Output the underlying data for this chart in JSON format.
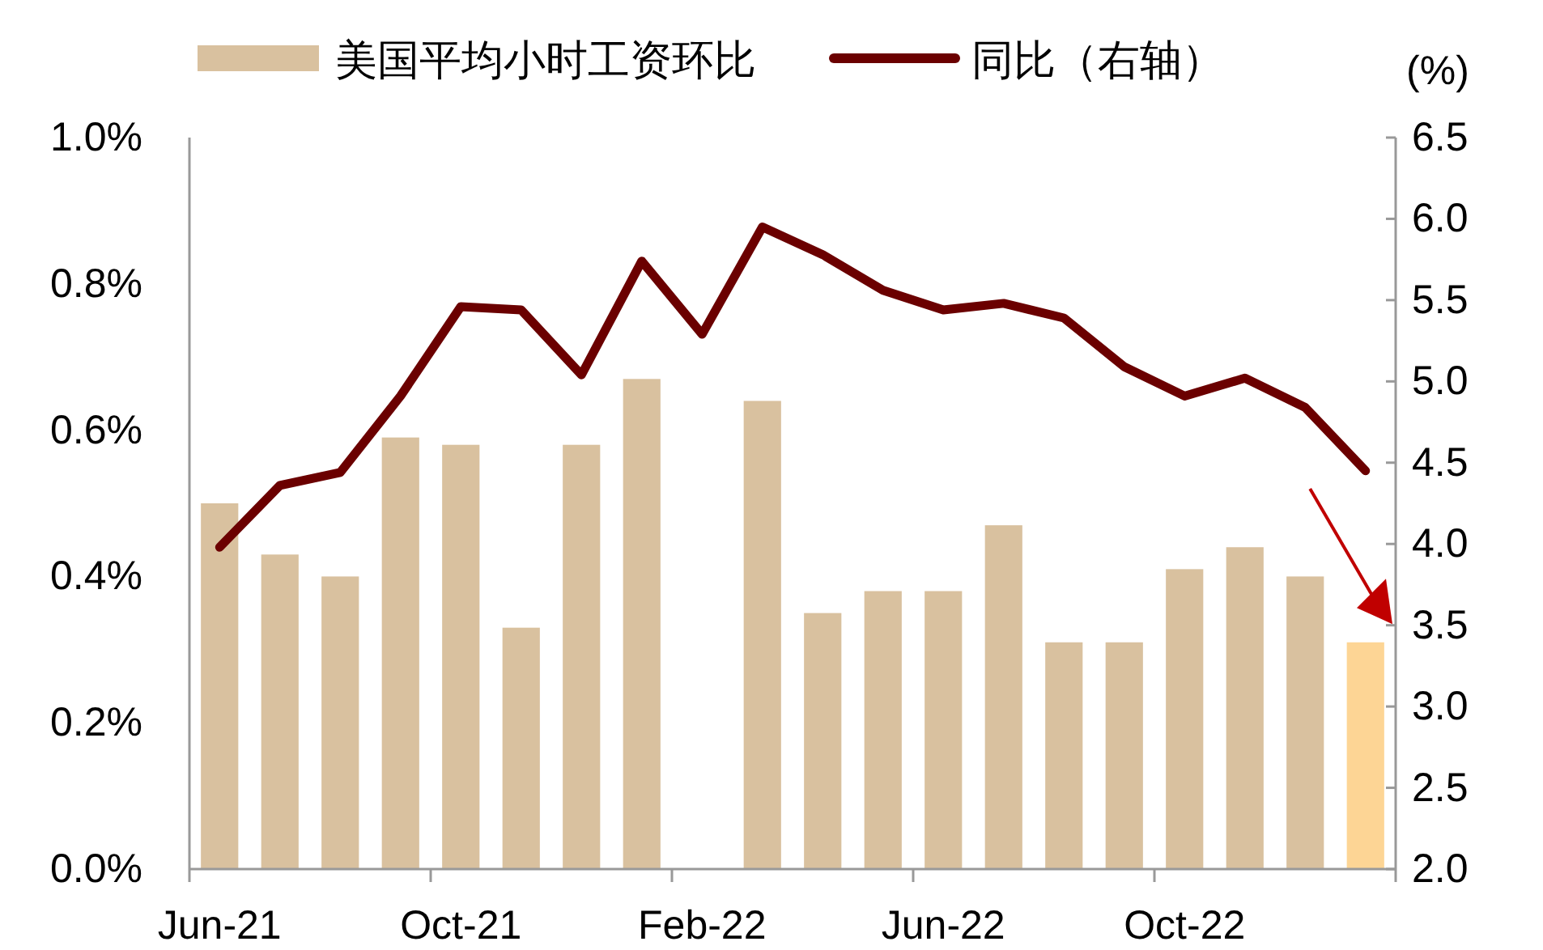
{
  "chart_data": {
    "type": "bar",
    "categories": [
      "Jun-21",
      null,
      null,
      null,
      "Oct-21",
      null,
      null,
      null,
      "Feb-22",
      null,
      null,
      null,
      "Jun-22",
      null,
      null,
      null,
      "Oct-22",
      null,
      null,
      null
    ],
    "series": [
      {
        "name": "美国平均小时工资环比",
        "color": "#d9c19f",
        "colors": [
          "#d9c19f",
          "#d9c19f",
          "#d9c19f",
          "#d9c19f",
          "#d9c19f",
          "#d9c19f",
          "#d9c19f",
          "#d9c19f",
          "#d9c19f",
          "#d9c19f",
          "#d9c19f",
          "#d9c19f",
          "#d9c19f",
          "#d9c19f",
          "#d9c19f",
          "#d9c19f",
          "#d9c19f",
          "#d9c19f",
          "#d9c19f",
          "#fdd595"
        ],
        "values": [
          0.5,
          0.43,
          0.4,
          0.59,
          0.58,
          0.33,
          0.58,
          0.67,
          0,
          0.64,
          0.35,
          0.38,
          0.38,
          0.47,
          0.31,
          0.31,
          0.41,
          0.44,
          0.4,
          0.31
        ]
      },
      {
        "name": "同比（右轴）",
        "type": "line",
        "axis": "y2",
        "color": "#6b0000",
        "values": [
          3.98,
          4.36,
          4.44,
          4.91,
          5.46,
          5.44,
          5.04,
          5.74,
          5.29,
          5.95,
          5.78,
          5.56,
          5.44,
          5.48,
          5.39,
          5.09,
          4.91,
          5.02,
          4.84,
          4.45
        ]
      }
    ],
    "ylim": [
      0,
      1.0
    ],
    "yticks": [
      {
        "value": 0,
        "label": "0.0%"
      },
      {
        "value": 0.2,
        "label": "0.2%"
      },
      {
        "value": 0.4,
        "label": "0.4%"
      },
      {
        "value": 0.6,
        "label": "0.6%"
      },
      {
        "value": 0.8,
        "label": "0.8%"
      },
      {
        "value": 1.0,
        "label": "1.0%"
      }
    ],
    "y2lim": [
      2.0,
      6.5
    ],
    "y2ticks": [
      {
        "value": 2,
        "label": "2.0"
      },
      {
        "value": 2.5,
        "label": "2.5"
      },
      {
        "value": 3,
        "label": "3.0"
      },
      {
        "value": 3.5,
        "label": "3.5"
      },
      {
        "value": 4,
        "label": "4.0"
      },
      {
        "value": 4.5,
        "label": "4.5"
      },
      {
        "value": 5,
        "label": "5.0"
      },
      {
        "value": 5.5,
        "label": "5.5"
      },
      {
        "value": 6,
        "label": "6.0"
      },
      {
        "value": 6.5,
        "label": "6.5"
      }
    ],
    "y2label": "(%)",
    "legend": "top",
    "grid": false,
    "line_style": "solid",
    "marker": "none"
  }
}
